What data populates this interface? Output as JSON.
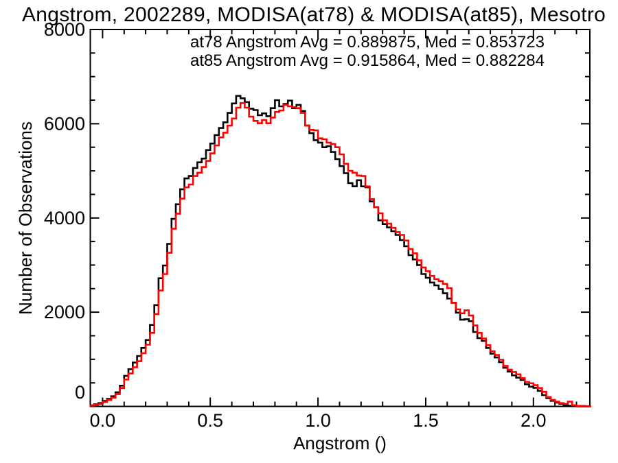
{
  "title": "Angstrom, 2002289, MODISA(at78) & MODISA(at85), Mesotro",
  "legend": {
    "line1": "at78 Angstrom Avg = 0.889875, Med = 0.853723",
    "line2": "at85 Angstrom Avg = 0.915864, Med = 0.882284"
  },
  "colors": {
    "at78": "#000000",
    "at85": "#ff0000",
    "frame": "#000000",
    "background": "#ffffff"
  },
  "stats": {
    "at78_avg": "0.889875",
    "at78_med": "0.853723",
    "at85_avg": "0.915864",
    "at85_med": "0.882284"
  },
  "chart_data": {
    "type": "line",
    "subtype": "step-histogram",
    "title": "Angstrom, 2002289, MODISA(at78) & MODISA(at85), Mesotro",
    "xlabel": "Angstrom ()",
    "ylabel": "Number of Observations",
    "xlim": [
      -0.057,
      2.262
    ],
    "ylim": [
      0,
      8000
    ],
    "xticks": [
      0.0,
      0.5,
      1.0,
      1.5,
      2.0
    ],
    "xtick_labels": [
      "0.0",
      "0.5",
      "1.0",
      "1.5",
      "2.0"
    ],
    "x_minor_step": 0.1,
    "yticks": [
      0,
      2000,
      4000,
      6000,
      8000
    ],
    "ytick_labels": [
      "0",
      "2000",
      "4000",
      "6000",
      "8000"
    ],
    "y_minor_step": 500,
    "grid": false,
    "legend_position": "top-center-inside",
    "x_start": -0.06,
    "x_step": 0.02,
    "n_bins": 117,
    "series": [
      {
        "name": "at78",
        "color": "#000000",
        "values": [
          20,
          45,
          70,
          115,
          160,
          215,
          300,
          440,
          650,
          790,
          930,
          1070,
          1240,
          1410,
          1730,
          2150,
          2720,
          2990,
          3450,
          3980,
          4290,
          4610,
          4840,
          4890,
          5060,
          5180,
          5260,
          5440,
          5580,
          5760,
          5910,
          6030,
          6230,
          6430,
          6590,
          6540,
          6460,
          6320,
          6290,
          6180,
          6220,
          6160,
          6330,
          6500,
          6370,
          6420,
          6490,
          6330,
          6400,
          6270,
          5960,
          5800,
          5650,
          5600,
          5500,
          5525,
          5400,
          5250,
          5100,
          4950,
          4740,
          4670,
          4800,
          4670,
          4650,
          4350,
          4230,
          3950,
          3870,
          3800,
          3720,
          3640,
          3530,
          3400,
          3210,
          3120,
          3000,
          2810,
          2730,
          2630,
          2570,
          2490,
          2400,
          2290,
          2200,
          1990,
          1840,
          1850,
          1810,
          1580,
          1450,
          1390,
          1240,
          1120,
          1040,
          940,
          820,
          740,
          660,
          610,
          560,
          470,
          420,
          395,
          330,
          240,
          175,
          120,
          80,
          55,
          30,
          14,
          7,
          3,
          1,
          0,
          0
        ]
      },
      {
        "name": "at85",
        "color": "#ff0000",
        "values": [
          15,
          35,
          55,
          95,
          135,
          185,
          260,
          390,
          570,
          700,
          830,
          960,
          1130,
          1310,
          1560,
          1960,
          2460,
          2810,
          3260,
          3770,
          4090,
          4410,
          4650,
          4710,
          4890,
          4960,
          5080,
          5210,
          5370,
          5540,
          5710,
          5810,
          5960,
          6110,
          6340,
          6440,
          6340,
          6150,
          6060,
          6010,
          6080,
          6010,
          6130,
          6250,
          6280,
          6400,
          6370,
          6350,
          6330,
          6230,
          5960,
          5870,
          5860,
          5690,
          5670,
          5600,
          5570,
          5500,
          5350,
          5150,
          5000,
          4960,
          4900,
          4890,
          4670,
          4400,
          4230,
          4100,
          3950,
          3880,
          3790,
          3700,
          3640,
          3520,
          3340,
          3250,
          3100,
          2950,
          2870,
          2770,
          2700,
          2660,
          2600,
          2510,
          2200,
          2060,
          1975,
          2040,
          1930,
          1720,
          1560,
          1440,
          1300,
          1170,
          1090,
          990,
          860,
          780,
          730,
          680,
          600,
          520,
          490,
          450,
          390,
          310,
          200,
          140,
          100,
          70,
          55,
          100,
          25,
          12,
          10,
          8,
          8
        ]
      }
    ]
  }
}
